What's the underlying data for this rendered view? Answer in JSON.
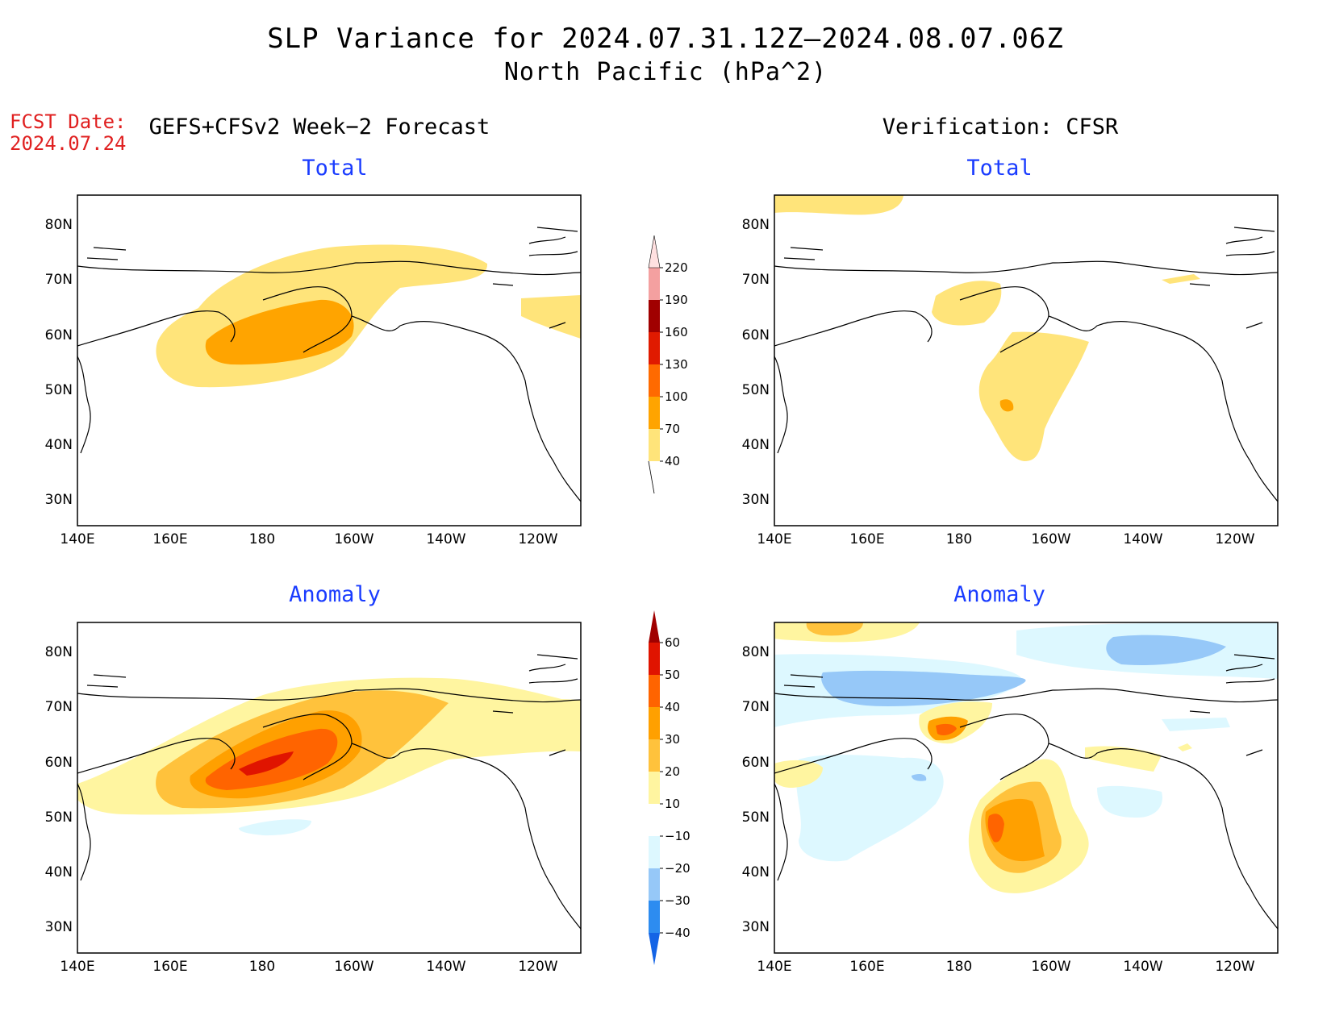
{
  "title": "SLP Variance for 2024.07.31.12Z–2024.08.07.06Z",
  "subtitle": "North Pacific (hPa^2)",
  "fcst_date_label": "FCST Date:",
  "fcst_date_value": "2024.07.24",
  "left_column_title": "GEFS+CFSv2 Week−2 Forecast",
  "right_column_title": "Verification: CFSR",
  "panels": {
    "fc_total": {
      "label": "Total"
    },
    "ver_total": {
      "label": "Total"
    },
    "fc_anom": {
      "label": "Anomaly"
    },
    "ver_anom": {
      "label": "Anomaly"
    }
  },
  "axes": {
    "lat_labels": [
      "80N",
      "70N",
      "60N",
      "50N",
      "40N",
      "30N"
    ],
    "lon_labels": [
      "140E",
      "160E",
      "180",
      "160W",
      "140W",
      "120W"
    ]
  },
  "colorbar_total": {
    "levels": [
      "40",
      "70",
      "100",
      "130",
      "160",
      "190",
      "220"
    ],
    "colors": [
      "#ffe47a",
      "#ffa400",
      "#ff6a00",
      "#e01a00",
      "#a00000",
      "#f4a0a0",
      "#ffe0e0"
    ]
  },
  "colorbar_anom": {
    "levels": [
      "−40",
      "−30",
      "−20",
      "−10",
      "10",
      "20",
      "30",
      "40",
      "50",
      "60"
    ],
    "colors": [
      "#1464e6",
      "#2d8cf0",
      "#96c8f8",
      "#ddf8ff",
      "#ffffff",
      "#fff5a0",
      "#ffc23c",
      "#ffa000",
      "#ff6400",
      "#e01400",
      "#a00000"
    ]
  },
  "chart_data": [
    {
      "type": "heatmap",
      "title": "Total",
      "units": "hPa^2",
      "source": "GEFS+CFSv2 Week-2 Forecast",
      "features": [
        {
          "level": "40-70",
          "region": "Bering Sea / Alaska band"
        },
        {
          "level": "70-100",
          "region": "near 180, 55-65N"
        }
      ]
    },
    {
      "type": "heatmap",
      "title": "Total",
      "units": "hPa^2",
      "source": "Verification: CFSR",
      "features": [
        {
          "level": "40-70",
          "region": "Gulf of Alaska / Bering Sea"
        }
      ]
    },
    {
      "type": "heatmap",
      "title": "Anomaly",
      "units": "hPa^2",
      "source": "GEFS+CFSv2 Week-2 Forecast",
      "features": [
        {
          "level": "40-50",
          "region": "near 180, 58N"
        }
      ]
    },
    {
      "type": "heatmap",
      "title": "Anomaly",
      "units": "hPa^2",
      "source": "Verification: CFSR",
      "features": [
        {
          "level": "30-40",
          "region": "near 165W, 45N"
        },
        {
          "level": "-20 to -10",
          "region": "Arctic / 70-80N"
        }
      ]
    }
  ]
}
